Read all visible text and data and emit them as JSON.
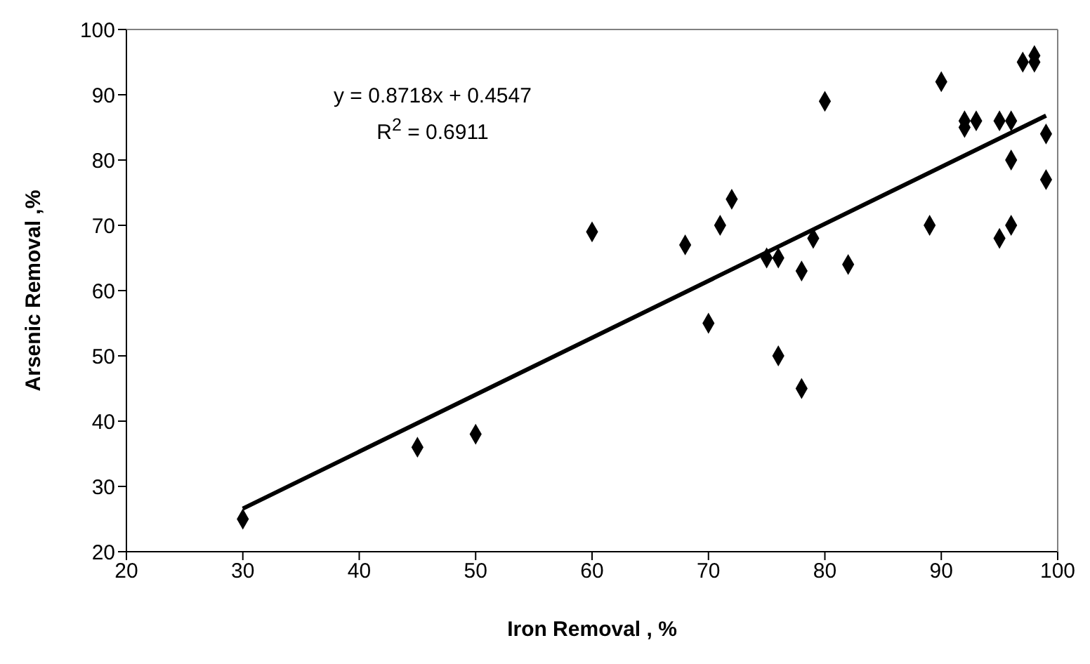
{
  "chart_data": {
    "type": "scatter",
    "xlabel": "Iron Removal , %",
    "ylabel": "Arsenic Removal ,%",
    "xlim": [
      20,
      100
    ],
    "ylim": [
      20,
      100
    ],
    "xticks": [
      20,
      30,
      40,
      50,
      60,
      70,
      80,
      90,
      100
    ],
    "yticks": [
      20,
      30,
      40,
      50,
      60,
      70,
      80,
      90,
      100
    ],
    "grid": false,
    "marker": "diamond",
    "annotations": [
      "y = 0.8718x + 0.4547",
      "R$^{2}$ = 0.6911"
    ],
    "series": [
      {
        "color": "#000000",
        "x": [
          30,
          45,
          50,
          60,
          68,
          70,
          71,
          72,
          75,
          76,
          76,
          78,
          78,
          79,
          80,
          82,
          89,
          90,
          92,
          92,
          93,
          95,
          95,
          96,
          96,
          96,
          97,
          98,
          98,
          99,
          99
        ],
        "values": [
          25,
          36,
          38,
          69,
          67,
          55,
          70,
          74,
          65,
          65,
          50,
          45,
          63,
          68,
          89,
          64,
          70,
          92,
          86,
          85,
          86,
          68,
          86,
          70,
          80,
          86,
          95,
          96,
          95,
          84,
          77
        ]
      },
      {
        "type": "line",
        "color": "#000000",
        "line_style": "solid",
        "marker": "none",
        "x": [
          30,
          99
        ],
        "values": [
          26.6,
          86.8
        ]
      }
    ]
  }
}
